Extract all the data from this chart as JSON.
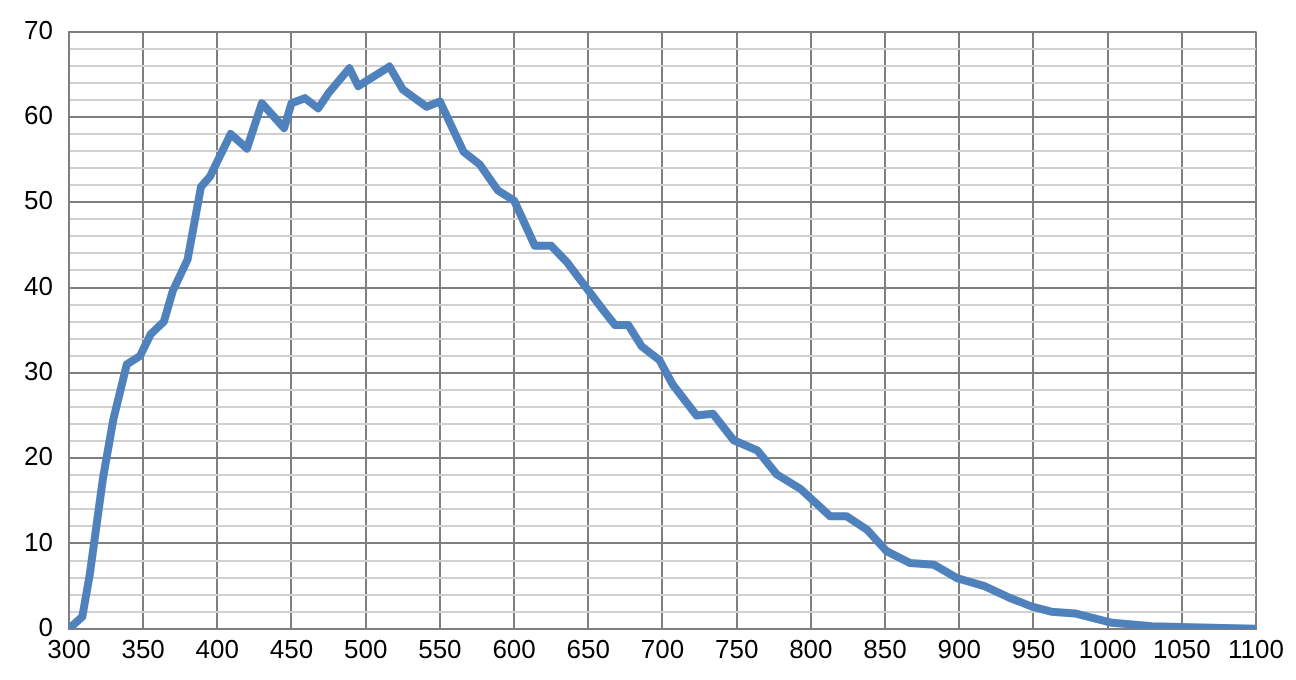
{
  "chart_data": {
    "type": "line",
    "x": [
      300,
      309,
      314,
      323,
      330,
      339,
      348,
      355,
      364,
      370,
      380,
      389,
      395,
      409,
      420,
      430,
      445,
      450,
      459,
      468,
      475,
      489,
      495,
      516,
      525,
      541,
      550,
      566,
      577,
      589,
      600,
      614,
      625,
      636,
      645,
      659,
      668,
      677,
      686,
      698,
      707,
      723,
      734,
      748,
      764,
      777,
      793,
      813,
      824,
      838,
      851,
      867,
      883,
      899,
      917,
      933,
      949,
      962,
      978,
      1003,
      1030,
      1048,
      1100
    ],
    "series": [
      {
        "color": "#4f81bd",
        "values": [
          0,
          1.4,
          6.3,
          17.7,
          24.6,
          31,
          32,
          34.5,
          36,
          39.6,
          43.3,
          51.8,
          53,
          58,
          56.3,
          61.6,
          58.7,
          61.6,
          62.2,
          61,
          62.8,
          65.7,
          63.6,
          65.9,
          63.2,
          61.2,
          61.8,
          55.9,
          54.4,
          51.4,
          50.2,
          44.9,
          44.9,
          42.9,
          40.8,
          37.6,
          35.6,
          35.6,
          33.1,
          31.5,
          28.6,
          25,
          25.2,
          22.1,
          20.9,
          18.1,
          16.4,
          13.2,
          13.2,
          11.6,
          9.1,
          7.7,
          7.5,
          5.9,
          5,
          3.7,
          2.6,
          2,
          1.8,
          0.7,
          0.3,
          0.2,
          0
        ]
      }
    ],
    "xlim": [
      300,
      1100
    ],
    "xticks": [
      300,
      350,
      400,
      450,
      500,
      550,
      600,
      650,
      700,
      750,
      800,
      850,
      900,
      950,
      1000,
      1050,
      1100
    ],
    "ylim": [
      0,
      70
    ],
    "yticks": [
      0,
      {
        "value": 2,
        "label": null
      },
      {
        "value": 4,
        "label": null
      },
      {
        "value": 6,
        "label": null
      },
      {
        "value": 8,
        "label": null
      },
      10,
      {
        "value": 12,
        "label": null
      },
      {
        "value": 14,
        "label": null
      },
      {
        "value": 16,
        "label": null
      },
      {
        "value": 18,
        "label": null
      },
      20,
      {
        "value": 22,
        "label": null
      },
      {
        "value": 24,
        "label": null
      },
      {
        "value": 26,
        "label": null
      },
      {
        "value": 28,
        "label": null
      },
      30,
      {
        "value": 32,
        "label": null
      },
      {
        "value": 34,
        "label": null
      },
      {
        "value": 36,
        "label": null
      },
      {
        "value": 38,
        "label": null
      },
      40,
      {
        "value": 42,
        "label": null
      },
      {
        "value": 44,
        "label": null
      },
      {
        "value": 46,
        "label": null
      },
      {
        "value": 48,
        "label": null
      },
      50,
      {
        "value": 52,
        "label": null
      },
      {
        "value": 54,
        "label": null
      },
      {
        "value": 56,
        "label": null
      },
      {
        "value": 58,
        "label": null
      },
      60,
      {
        "value": 62,
        "label": null
      },
      {
        "value": 64,
        "label": null
      },
      {
        "value": 66,
        "label": null
      },
      {
        "value": 68,
        "label": null
      },
      70
    ],
    "grid": true,
    "legend": false,
    "marker": "none",
    "line_style": "solid"
  }
}
